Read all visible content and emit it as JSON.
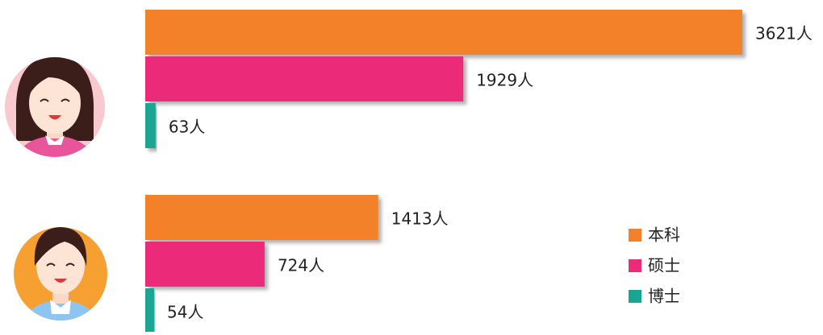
{
  "chart_data": {
    "type": "bar",
    "orientation": "horizontal",
    "categories": [
      null,
      null
    ],
    "series": [
      {
        "name": "本科",
        "color": "#f2812a",
        "values": [
          3621,
          1413
        ],
        "value_labels": [
          "3621人",
          "1413人"
        ]
      },
      {
        "name": "硕士",
        "color": "#ec2a7a",
        "values": [
          1929,
          724
        ],
        "value_labels": [
          "1929人",
          "724人"
        ]
      },
      {
        "name": "博士",
        "color": "#1aa592",
        "values": [
          63,
          54
        ],
        "value_labels": [
          "63人",
          "54人"
        ]
      }
    ]
  }
}
